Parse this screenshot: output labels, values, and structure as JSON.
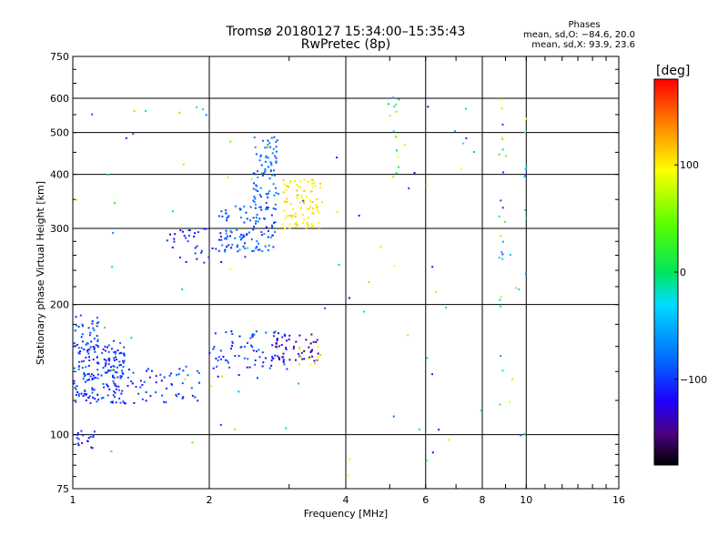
{
  "chart_data": {
    "type": "scatter",
    "title": "Tromsø 20180127 15:34:00–15:35:43",
    "subtitle": "RwPretec (8p)",
    "xlabel": "Frequency [MHz]",
    "ylabel": "Stationary phase Virtual Height [km]",
    "x_scale": "log",
    "y_scale": "log",
    "xlim": [
      1,
      16
    ],
    "ylim": [
      75,
      750
    ],
    "x_ticks": [
      1,
      2,
      4,
      6,
      8,
      10,
      16
    ],
    "x_tick_labels": [
      "1",
      "2",
      "4",
      "6",
      "8",
      "10",
      "16"
    ],
    "y_ticks": [
      75,
      100,
      200,
      300,
      400,
      500,
      600,
      750
    ],
    "y_tick_labels": [
      "75",
      "100",
      "200",
      "300",
      "400",
      "500",
      "600",
      "750"
    ],
    "grid": true,
    "phase_stats": {
      "heading": "Phases",
      "o_line": "mean, sd,O: −84.6, 20.0",
      "x_line": "mean, sd,X:  93.9, 23.6"
    },
    "colorbar": {
      "label": "[deg]",
      "range": [
        -180,
        180
      ],
      "ticks": [
        100,
        0,
        -100
      ],
      "tick_labels": [
        "100",
        "0",
        "−100"
      ]
    },
    "clusters": [
      {
        "f": [
          1.0,
          1.3
        ],
        "h": [
          118,
          165
        ],
        "phase": [
          -120,
          -80
        ],
        "n": 200
      },
      {
        "f": [
          1.0,
          1.15
        ],
        "h": [
          158,
          190
        ],
        "phase": [
          -115,
          -80
        ],
        "n": 30
      },
      {
        "f": [
          1.3,
          1.95
        ],
        "h": [
          118,
          145
        ],
        "phase": [
          -120,
          -80
        ],
        "n": 55
      },
      {
        "f": [
          1.02,
          1.12
        ],
        "h": [
          93,
          102
        ],
        "phase": [
          -120,
          -90
        ],
        "n": 18
      },
      {
        "f": [
          2.0,
          3.0
        ],
        "h": [
          135,
          175
        ],
        "phase": [
          -125,
          -80
        ],
        "n": 75
      },
      {
        "f": [
          2.8,
          3.5
        ],
        "h": [
          148,
          172
        ],
        "phase": [
          -160,
          -110
        ],
        "n": 45
      },
      {
        "f": [
          3.1,
          3.55
        ],
        "h": [
          145,
          160
        ],
        "phase": [
          90,
          120
        ],
        "n": 12
      },
      {
        "f": [
          1.6,
          2.4
        ],
        "h": [
          250,
          300
        ],
        "phase": [
          -130,
          -90
        ],
        "n": 45
      },
      {
        "f": [
          2.1,
          2.8
        ],
        "h": [
          265,
          340
        ],
        "phase": [
          -110,
          -60
        ],
        "n": 100
      },
      {
        "f": [
          2.5,
          2.85
        ],
        "h": [
          330,
          490
        ],
        "phase": [
          -100,
          -60
        ],
        "n": 80
      },
      {
        "f": [
          2.9,
          3.55
        ],
        "h": [
          300,
          390
        ],
        "phase": [
          80,
          120
        ],
        "n": 90
      },
      {
        "f": [
          1.0,
          10.0
        ],
        "h": [
          80,
          600
        ],
        "phase": [
          -130,
          120
        ],
        "n": 90
      },
      {
        "f": [
          8.7,
          8.9
        ],
        "h": [
          110,
          620
        ],
        "phase": [
          -110,
          110
        ],
        "n": 22
      },
      {
        "f": [
          9.9,
          10.05
        ],
        "h": [
          220,
          560
        ],
        "phase": [
          -100,
          110
        ],
        "n": 10
      },
      {
        "f": [
          5.0,
          5.25
        ],
        "h": [
          400,
          620
        ],
        "phase": [
          -80,
          120
        ],
        "n": 12
      }
    ]
  }
}
